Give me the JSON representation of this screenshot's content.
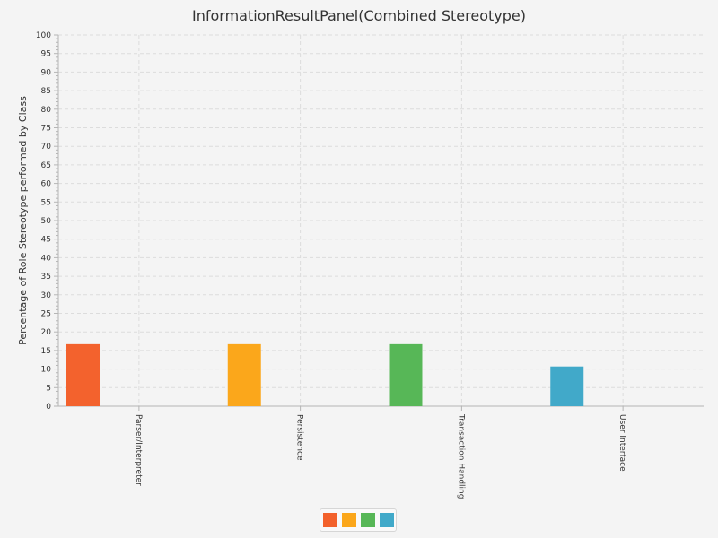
{
  "chart_data": {
    "type": "bar",
    "title": "InformationResultPanel(Combined Stereotype)",
    "xlabel": "",
    "ylabel": "Percentage of Role Stereotype performed by Class",
    "categories": [
      "Parser/Interpreter",
      "Persistence",
      "Transaction Handling",
      "User Interface"
    ],
    "values": [
      16.7,
      16.7,
      16.7,
      10.7
    ],
    "colors": [
      "#f3622d",
      "#fba71b",
      "#57b757",
      "#41a9c9"
    ],
    "ylim": [
      0,
      100
    ],
    "ytick_step": 5,
    "grid": true,
    "legend": {
      "placement": "bottom-center",
      "entries": [
        "",
        "",
        "",
        ""
      ]
    }
  }
}
